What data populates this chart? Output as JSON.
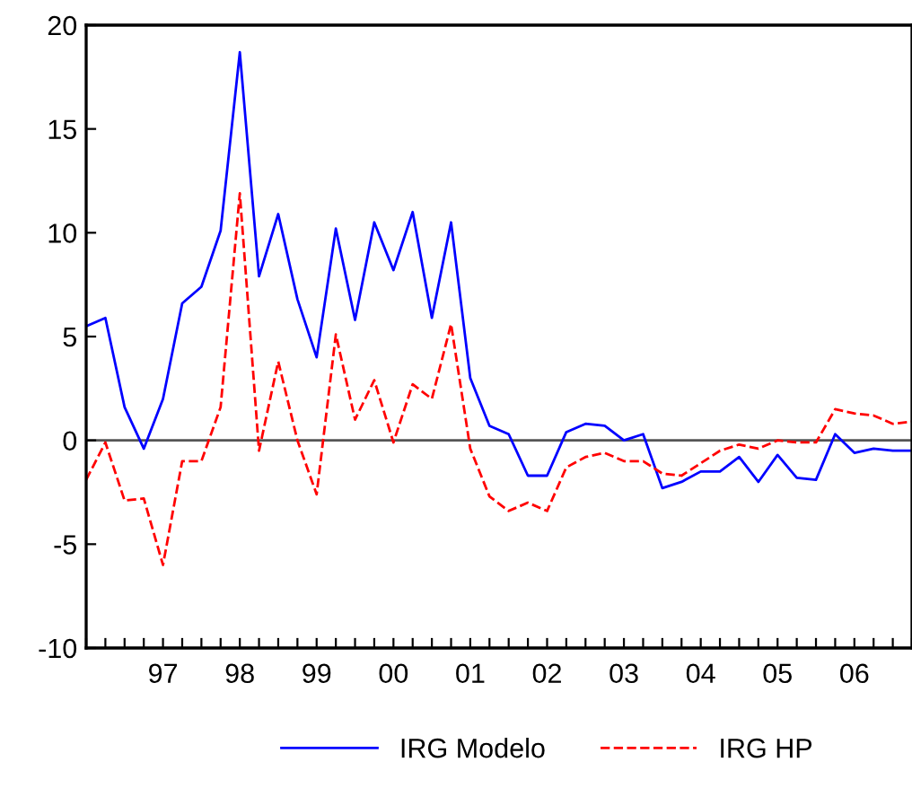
{
  "chart_data": {
    "type": "line",
    "categories": [
      null,
      null,
      null,
      null,
      "97",
      null,
      null,
      null,
      "98",
      null,
      null,
      null,
      "99",
      null,
      null,
      null,
      "00",
      null,
      null,
      null,
      "01",
      null,
      null,
      null,
      "02",
      null,
      null,
      null,
      "03",
      null,
      null,
      null,
      "04",
      null,
      null,
      null,
      "05",
      null,
      null,
      null,
      "06",
      null,
      null,
      null
    ],
    "series": [
      {
        "name": "IRG Modelo",
        "color": "#0000ff",
        "line_style": "solid",
        "values": [
          5.5,
          5.9,
          1.6,
          -0.4,
          2.0,
          6.6,
          7.4,
          10.1,
          18.7,
          7.9,
          10.9,
          6.8,
          4.0,
          10.2,
          5.8,
          10.5,
          8.2,
          11.0,
          5.9,
          10.5,
          3.0,
          0.7,
          0.3,
          -1.7,
          -1.7,
          0.4,
          0.8,
          0.7,
          0.0,
          0.3,
          -2.3,
          -2.0,
          -1.5,
          -1.5,
          -0.8,
          -2.0,
          -0.7,
          -1.8,
          -1.9,
          0.3,
          -0.6,
          -0.4,
          -0.5,
          -0.5
        ]
      },
      {
        "name": "IRG HP",
        "color": "#ff0000",
        "line_style": "dashed",
        "values": [
          -1.9,
          -0.1,
          -2.9,
          -2.8,
          -6.0,
          -1.0,
          -1.0,
          1.6,
          11.9,
          -0.5,
          3.8,
          0.0,
          -2.6,
          5.1,
          1.0,
          2.9,
          -0.1,
          2.7,
          2.0,
          5.6,
          -0.4,
          -2.7,
          -3.4,
          -3.0,
          -3.4,
          -1.3,
          -0.8,
          -0.6,
          -1.0,
          -1.0,
          -1.6,
          -1.7,
          -1.1,
          -0.5,
          -0.2,
          -0.4,
          0.0,
          -0.1,
          -0.1,
          1.5,
          1.3,
          1.2,
          0.8,
          0.9
        ]
      }
    ],
    "ylim": [
      -10,
      20
    ],
    "yticks": [
      -10,
      -5,
      0,
      5,
      10,
      15,
      20
    ],
    "ref_lines": [
      {
        "axis": "y",
        "value": 0,
        "color": "#555555"
      }
    ],
    "grid": false,
    "legend": "bottom",
    "marker": "none"
  }
}
